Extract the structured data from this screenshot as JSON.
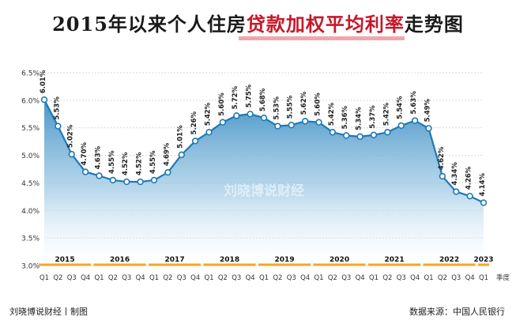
{
  "title": {
    "prefix": "2015年以来个人住房",
    "highlight": "贷款加权平均利率",
    "suffix": "走势图"
  },
  "footer": {
    "left": "刘晓博说财经丨制图",
    "right": "数据来源：中国人民银行"
  },
  "watermark": "刘晓博说财经",
  "colors": {
    "line": "#1f79b4",
    "fill_top": "#3d8fc4",
    "fill_bottom": "#ffffff",
    "year_bar": "#f5a623",
    "highlight": "#c6182a"
  },
  "chart_data": {
    "type": "area",
    "x": [
      "Q1",
      "Q2",
      "Q3",
      "Q4",
      "Q1",
      "Q2",
      "Q3",
      "Q4",
      "Q1",
      "Q2",
      "Q3",
      "Q4",
      "Q1",
      "Q2",
      "Q3",
      "Q4",
      "Q1",
      "Q2",
      "Q3",
      "Q4",
      "Q1",
      "Q2",
      "Q3",
      "Q4",
      "Q1",
      "Q2",
      "Q3",
      "Q4",
      "Q1",
      "Q2",
      "Q3",
      "Q4",
      "Q1"
    ],
    "years": [
      {
        "label": "2015",
        "start": 0,
        "end": 3
      },
      {
        "label": "2016",
        "start": 4,
        "end": 7
      },
      {
        "label": "2017",
        "start": 8,
        "end": 11
      },
      {
        "label": "2018",
        "start": 12,
        "end": 15
      },
      {
        "label": "2019",
        "start": 16,
        "end": 19
      },
      {
        "label": "2020",
        "start": 20,
        "end": 23
      },
      {
        "label": "2021",
        "start": 24,
        "end": 27
      },
      {
        "label": "2022",
        "start": 28,
        "end": 31
      },
      {
        "label": "2023",
        "start": 32,
        "end": 32
      }
    ],
    "series": [
      {
        "values": [
          6.01,
          5.53,
          5.02,
          4.7,
          4.63,
          4.55,
          4.52,
          4.52,
          4.55,
          4.69,
          5.01,
          5.26,
          5.42,
          5.6,
          5.72,
          5.75,
          5.68,
          5.53,
          5.55,
          5.62,
          5.6,
          5.42,
          5.36,
          5.34,
          5.37,
          5.42,
          5.54,
          5.63,
          5.49,
          4.62,
          4.34,
          4.26,
          4.14
        ],
        "labels": [
          "6.01%",
          "5.53%",
          "5.02%",
          "4.70%",
          "4.63%",
          "4.55%",
          "4.52%",
          "4.52%",
          "4.55%",
          "4.69%",
          "5.01%",
          "5.26%",
          "5.42%",
          "5.60%",
          "5.72%",
          "5.75%",
          "5.68%",
          "5.53%",
          "5.55%",
          "5.62%",
          "5.60%",
          "5.42%",
          "5.36%",
          "5.34%",
          "5.37%",
          "5.42%",
          "5.54%",
          "5.63%",
          "5.49%",
          "4.62%",
          "4.34%",
          "4.26%",
          "4.14%"
        ]
      }
    ],
    "y_ticks": [
      "3.0%",
      "3.5%",
      "4.0%",
      "4.5%",
      "5.0%",
      "5.5%",
      "6.0%",
      "6.5%"
    ],
    "ylim": [
      3.0,
      6.5
    ],
    "xlabel": "季度",
    "grid": true
  }
}
